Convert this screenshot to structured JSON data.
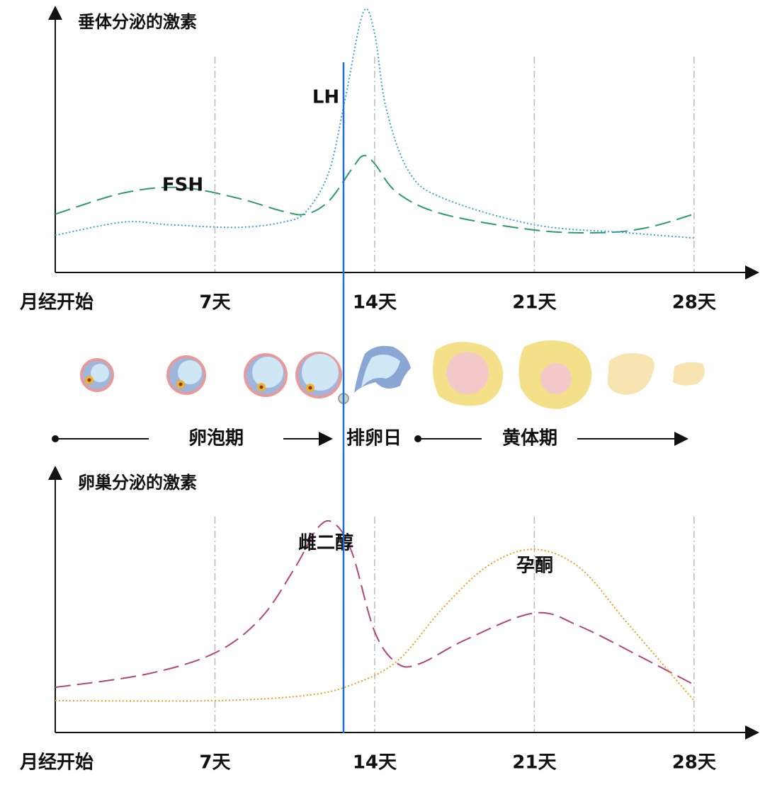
{
  "chart_data": [
    {
      "type": "line",
      "title": "垂体分泌的激素",
      "xlim": [
        0,
        30.8
      ],
      "ylim": [
        0,
        100
      ],
      "xticks": [
        {
          "value": 0,
          "label": "月经开始"
        },
        {
          "value": 7,
          "label": "7天"
        },
        {
          "value": 14,
          "label": "14天"
        },
        {
          "value": 21,
          "label": "21天"
        },
        {
          "value": 28,
          "label": "28天"
        }
      ],
      "series": [
        {
          "name": "FSH",
          "color": "#2e9a6e",
          "dash": "dashed",
          "x": [
            0,
            3,
            5.5,
            8,
            10,
            11,
            12,
            13,
            13.5,
            14,
            15,
            17,
            21,
            24,
            26,
            28
          ],
          "values": [
            22,
            30,
            32,
            28,
            23,
            22,
            27,
            39,
            44,
            41,
            30,
            22,
            16,
            15,
            17,
            22
          ]
        },
        {
          "name": "LH",
          "color": "#3aa6c6",
          "dash": "dotted",
          "x": [
            0,
            3,
            5,
            8,
            10,
            11,
            12,
            12.7,
            13.5,
            14,
            14.5,
            15.5,
            17,
            21,
            25,
            28
          ],
          "values": [
            14,
            19,
            18,
            17,
            19,
            23,
            38,
            65,
            98,
            90,
            62,
            38,
            28,
            18,
            15,
            13
          ]
        }
      ]
    },
    {
      "type": "line",
      "title": "卵巢分泌的激素",
      "xlim": [
        0,
        30.8
      ],
      "ylim": [
        0,
        100
      ],
      "xticks": [
        {
          "value": 0,
          "label": "月经开始"
        },
        {
          "value": 7,
          "label": "7天"
        },
        {
          "value": 14,
          "label": "14天"
        },
        {
          "value": 21,
          "label": "21天"
        },
        {
          "value": 28,
          "label": "28天"
        }
      ],
      "series": [
        {
          "name": "雌二醇",
          "color": "#b0467c",
          "dash": "dashed",
          "x": [
            0,
            4,
            7,
            9,
            10.5,
            11.5,
            12.2,
            13,
            14,
            15,
            16,
            18,
            21,
            23,
            26,
            28
          ],
          "values": [
            17,
            22,
            30,
            43,
            62,
            77,
            79,
            68,
            38,
            26,
            26,
            35,
            45,
            40,
            27,
            18
          ]
        },
        {
          "name": "孕酮",
          "color": "#e8a020",
          "dash": "dotted",
          "x": [
            0,
            7,
            11,
            13,
            15,
            17,
            19,
            21,
            23,
            25,
            27,
            28
          ],
          "values": [
            12,
            12,
            14,
            18,
            27,
            47,
            63,
            69,
            62,
            42,
            22,
            12
          ]
        }
      ]
    }
  ],
  "phases": [
    "卵泡期",
    "排卵日",
    "黄体期"
  ]
}
